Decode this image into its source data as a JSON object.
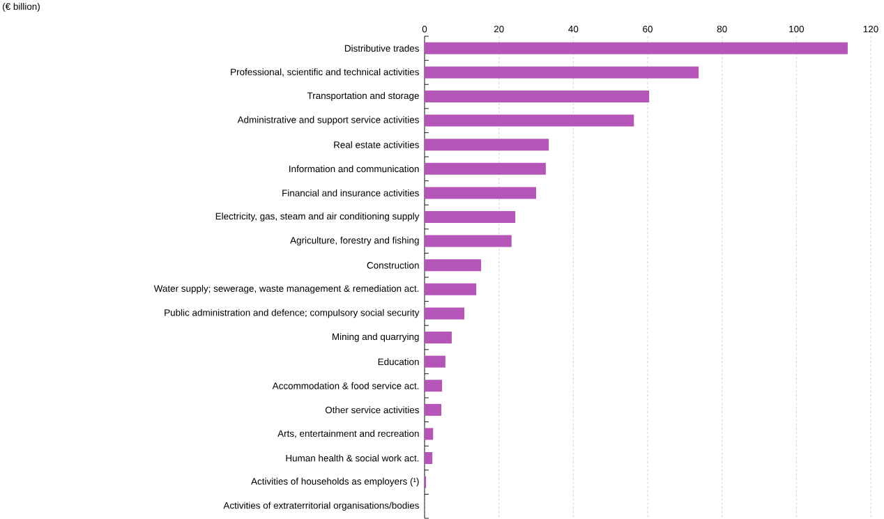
{
  "chart_data": {
    "type": "bar",
    "orientation": "horizontal",
    "title": "(€ billion)",
    "categories": [
      "Distributive trades",
      "Professional, scientific and technical activities",
      "Transportation and storage",
      "Administrative and support service activities",
      "Real estate activities",
      "Information and communication",
      "Financial and insurance activities",
      "Electricity, gas, steam and air conditioning supply",
      "Agriculture, forestry and fishing",
      "Construction",
      "Water supply; sewerage, waste management & remediation act.",
      "Public administration and defence; compulsory social security",
      "Mining and quarrying",
      "Education",
      "Accommodation & food service act.",
      "Other service activities",
      "Arts, entertainment and recreation",
      "Human health & social work act.",
      "Activities of households as employers (¹)",
      "Activities of extraterritorial organisations/bodies"
    ],
    "values": [
      113.8,
      73.7,
      60.4,
      56.3,
      33.4,
      32.6,
      30.0,
      24.4,
      23.4,
      15.2,
      13.9,
      10.7,
      7.3,
      5.6,
      4.7,
      4.5,
      2.3,
      2.1,
      0.4,
      0
    ],
    "color": "#b555b8",
    "xlim": [
      0,
      120
    ],
    "xticks": [
      0,
      20,
      40,
      60,
      80,
      100,
      120
    ],
    "grid": "x"
  }
}
